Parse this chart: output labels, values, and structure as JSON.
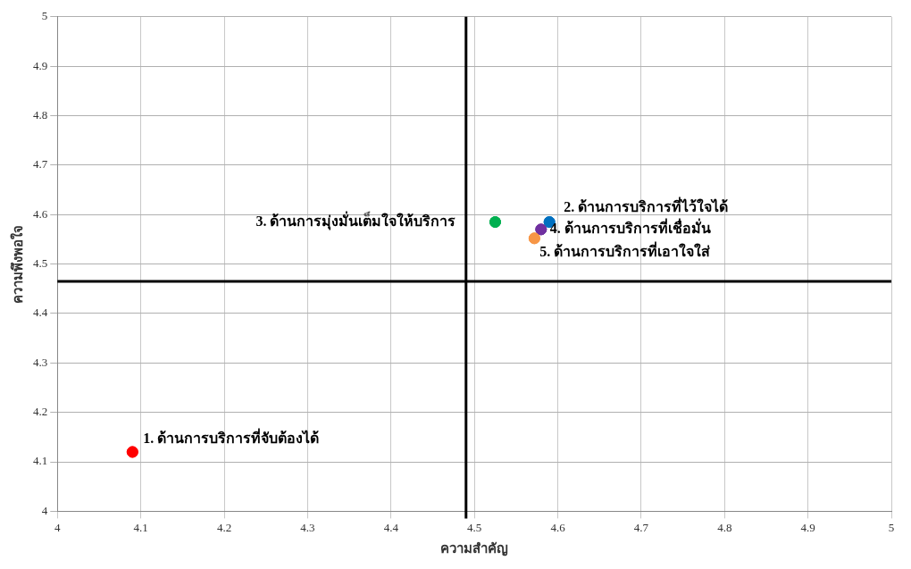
{
  "chart_data": {
    "type": "scatter",
    "xlabel": "ความสำคัญ",
    "ylabel": "ความพึงพอใจ",
    "series": [
      {
        "name": "1. ด้านการบริการที่จับต้องได้",
        "color": "#ff0000",
        "x": [
          4.09
        ],
        "values": [
          4.12
        ]
      },
      {
        "name": "2. ด้านการบริการที่ไว้ใจได้",
        "color": "#0070c0",
        "x": [
          4.59
        ],
        "values": [
          4.585
        ]
      },
      {
        "name": "3. ด้านการมุ่งมั่นเต็มใจให้บริการ",
        "color": "#00b050",
        "x": [
          4.525
        ],
        "values": [
          4.585
        ]
      },
      {
        "name": "4. ด้านการบริการที่เชื่อมั่น",
        "color": "#7030a0",
        "x": [
          4.58
        ],
        "values": [
          4.57
        ]
      },
      {
        "name": "5. ด้านการบริการที่เอาใจใส่",
        "color": "#f79646",
        "x": [
          4.572
        ],
        "values": [
          4.552
        ]
      }
    ],
    "xlim": [
      4,
      5
    ],
    "xticks": [
      4,
      4.1,
      4.2,
      4.3,
      4.4,
      4.5,
      4.6,
      4.7,
      4.8,
      4.9,
      5
    ],
    "ylim": [
      4,
      5
    ],
    "yticks": [
      4,
      4.1,
      4.2,
      4.3,
      4.4,
      4.5,
      4.6,
      4.7,
      4.8,
      4.9,
      5
    ],
    "ref_lines": [
      {
        "axis": "x",
        "value": 4.49,
        "color": "#000000"
      },
      {
        "axis": "y",
        "value": 4.465,
        "color": "#000000"
      }
    ],
    "grid": true,
    "legend": false,
    "marker": "circle"
  }
}
